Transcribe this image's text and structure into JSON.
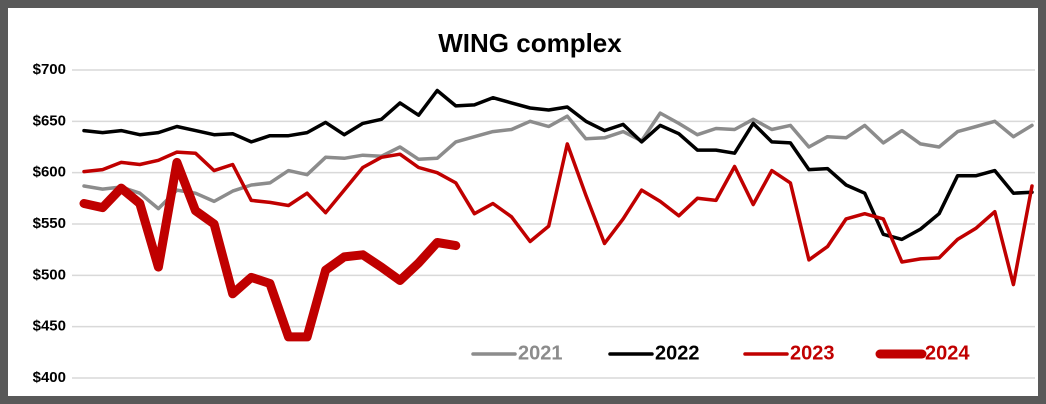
{
  "chart_data": {
    "type": "line",
    "title": "WING complex",
    "ylim": [
      400,
      700
    ],
    "yticks": [
      {
        "value": 400,
        "label": "$400"
      },
      {
        "value": 450,
        "label": "$450"
      },
      {
        "value": 500,
        "label": "$500"
      },
      {
        "value": 550,
        "label": "$550"
      },
      {
        "value": 600,
        "label": "$600"
      },
      {
        "value": 650,
        "label": "$650"
      },
      {
        "value": 700,
        "label": "$700"
      }
    ],
    "grid": true,
    "legend": "lower right",
    "series": [
      {
        "name": "2021",
        "color": "#8c8c8c",
        "width": 3.5,
        "values": [
          587,
          584,
          586,
          580,
          565,
          583,
          580,
          572,
          582,
          588,
          590,
          602,
          598,
          615,
          614,
          617,
          616,
          625,
          613,
          614,
          630,
          635,
          640,
          642,
          650,
          645,
          655,
          633,
          634,
          640,
          631,
          658,
          648,
          637,
          643,
          642,
          652,
          642,
          646,
          625,
          635,
          634,
          646,
          629,
          641,
          628,
          625,
          640,
          645,
          650,
          635,
          646
        ]
      },
      {
        "name": "2022",
        "color": "#000000",
        "width": 3.5,
        "values": [
          641,
          639,
          641,
          637,
          639,
          645,
          641,
          637,
          638,
          630,
          636,
          636,
          639,
          649,
          637,
          648,
          652,
          668,
          656,
          680,
          665,
          666,
          673,
          668,
          663,
          661,
          664,
          650,
          641,
          647,
          630,
          646,
          638,
          622,
          622,
          619,
          648,
          630,
          629,
          603,
          604,
          588,
          580,
          540,
          535,
          545,
          560,
          597,
          597,
          602,
          580,
          581
        ]
      },
      {
        "name": "2023",
        "color": "#c00000",
        "width": 3.5,
        "values": [
          601,
          603,
          610,
          608,
          612,
          620,
          619,
          602,
          608,
          573,
          571,
          568,
          580,
          561,
          583,
          605,
          615,
          618,
          605,
          600,
          590,
          560,
          570,
          557,
          533,
          548,
          628,
          578,
          531,
          555,
          583,
          572,
          558,
          575,
          573,
          606,
          569,
          602,
          590,
          515,
          528,
          555,
          560,
          555,
          513,
          516,
          517,
          535,
          546,
          562,
          491,
          587
        ]
      },
      {
        "name": "2024",
        "color": "#c00000",
        "width": 9,
        "values": [
          570,
          566,
          585,
          570,
          508,
          610,
          563,
          550,
          482,
          498,
          492,
          440,
          440,
          505,
          518,
          520,
          508,
          495,
          512,
          532,
          529,
          null,
          null,
          null,
          null,
          null,
          null,
          null,
          null,
          null,
          null,
          null,
          null,
          null,
          null,
          null,
          null,
          null,
          null,
          null,
          null,
          null,
          null,
          null,
          null,
          null,
          null,
          null,
          null,
          null,
          null,
          null
        ]
      }
    ]
  }
}
